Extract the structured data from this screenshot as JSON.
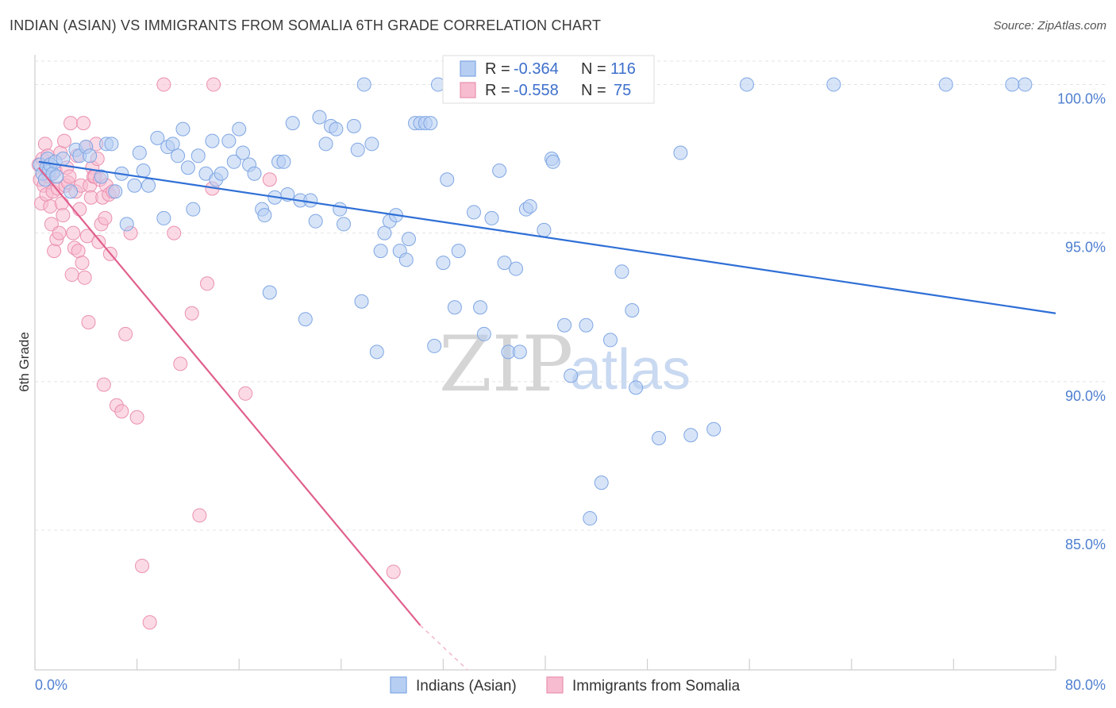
{
  "header": {
    "title": "INDIAN (ASIAN) VS IMMIGRANTS FROM SOMALIA 6TH GRADE CORRELATION CHART",
    "source": "Source: ZipAtlas.com"
  },
  "watermark": {
    "zip": "ZIP",
    "atlas": "atlas"
  },
  "colors": {
    "blue_fill": "#b7cef3",
    "blue_stroke": "#7fa6e3",
    "blue_line": "#2f6fd6",
    "pink_fill": "#f7bccf",
    "pink_stroke": "#ea90b0",
    "pink_line": "#e0608d",
    "grid": "#e3e3e3",
    "axis_text": "#4f7fd0"
  },
  "chart_data": {
    "type": "scatter",
    "title": "INDIAN (ASIAN) VS IMMIGRANTS FROM SOMALIA 6TH GRADE CORRELATION CHART",
    "xlabel": "",
    "ylabel": "6th Grade",
    "xlim": [
      0,
      80
    ],
    "ylim": [
      80.3,
      101.0
    ],
    "x_tick_labels": [
      "0.0%",
      "80.0%"
    ],
    "y_ticks": [
      85,
      90,
      95,
      100
    ],
    "y_tick_labels": [
      "85.0%",
      "90.0%",
      "95.0%",
      "100.0%"
    ],
    "legend": {
      "position": "top-center",
      "entries": [
        {
          "series": "Indians (Asian)",
          "r_label": "R =",
          "r": "-0.364",
          "n_label": "N =",
          "n": "116"
        },
        {
          "series": "Immigrants from Somalia",
          "r_label": "R =",
          "r": "-0.558",
          "n_label": "N =",
          "n": "75"
        }
      ]
    },
    "series": [
      {
        "name": "Indians (Asian)",
        "color": "#7fa6e3",
        "trendline": {
          "x": [
            0.3,
            80
          ],
          "y": [
            97.4,
            92.3
          ]
        },
        "points": [
          [
            0.4,
            97.3
          ],
          [
            0.6,
            97.0
          ],
          [
            0.8,
            96.8
          ],
          [
            0.9,
            97.2
          ],
          [
            1.0,
            97.5
          ],
          [
            1.1,
            97.1
          ],
          [
            1.2,
            97.3
          ],
          [
            1.4,
            97.0
          ],
          [
            1.6,
            97.4
          ],
          [
            1.7,
            96.9
          ],
          [
            2.2,
            97.5
          ],
          [
            2.8,
            96.4
          ],
          [
            3.2,
            97.8
          ],
          [
            3.5,
            97.6
          ],
          [
            4.0,
            97.9
          ],
          [
            4.3,
            97.6
          ],
          [
            5.2,
            96.9
          ],
          [
            5.6,
            98.0
          ],
          [
            6.0,
            98.0
          ],
          [
            6.3,
            96.4
          ],
          [
            6.8,
            97.0
          ],
          [
            7.2,
            95.3
          ],
          [
            7.8,
            96.6
          ],
          [
            8.2,
            97.7
          ],
          [
            8.5,
            97.1
          ],
          [
            8.9,
            96.6
          ],
          [
            9.6,
            98.2
          ],
          [
            10.1,
            95.5
          ],
          [
            10.4,
            97.9
          ],
          [
            10.8,
            98.0
          ],
          [
            11.2,
            97.6
          ],
          [
            11.6,
            98.5
          ],
          [
            12.0,
            97.2
          ],
          [
            12.4,
            95.8
          ],
          [
            12.8,
            97.6
          ],
          [
            13.4,
            97.0
          ],
          [
            13.9,
            98.1
          ],
          [
            14.2,
            96.8
          ],
          [
            14.6,
            97.0
          ],
          [
            15.2,
            98.1
          ],
          [
            15.6,
            97.4
          ],
          [
            16.0,
            98.5
          ],
          [
            16.3,
            97.7
          ],
          [
            16.8,
            97.3
          ],
          [
            17.2,
            97.0
          ],
          [
            17.8,
            95.8
          ],
          [
            18.0,
            95.6
          ],
          [
            18.4,
            93.0
          ],
          [
            18.8,
            96.2
          ],
          [
            19.1,
            97.4
          ],
          [
            19.5,
            97.4
          ],
          [
            19.8,
            96.3
          ],
          [
            20.2,
            98.7
          ],
          [
            20.8,
            96.1
          ],
          [
            21.2,
            92.1
          ],
          [
            21.6,
            96.1
          ],
          [
            22.0,
            95.4
          ],
          [
            22.3,
            98.9
          ],
          [
            22.8,
            98.0
          ],
          [
            23.2,
            98.6
          ],
          [
            23.6,
            98.5
          ],
          [
            23.9,
            95.8
          ],
          [
            24.2,
            95.3
          ],
          [
            25.0,
            98.6
          ],
          [
            25.3,
            97.8
          ],
          [
            25.6,
            92.7
          ],
          [
            25.8,
            100.0
          ],
          [
            26.4,
            98.0
          ],
          [
            26.8,
            91.0
          ],
          [
            27.1,
            94.4
          ],
          [
            27.4,
            95.0
          ],
          [
            27.8,
            95.4
          ],
          [
            28.3,
            95.6
          ],
          [
            28.6,
            94.4
          ],
          [
            29.1,
            94.1
          ],
          [
            29.3,
            94.8
          ],
          [
            29.8,
            98.7
          ],
          [
            30.2,
            98.7
          ],
          [
            30.6,
            98.7
          ],
          [
            31.0,
            98.7
          ],
          [
            31.3,
            91.2
          ],
          [
            31.6,
            100.0
          ],
          [
            32.0,
            94.0
          ],
          [
            32.3,
            96.8
          ],
          [
            32.9,
            92.5
          ],
          [
            33.2,
            94.4
          ],
          [
            34.4,
            95.7
          ],
          [
            34.9,
            92.5
          ],
          [
            35.2,
            91.6
          ],
          [
            35.8,
            95.5
          ],
          [
            36.4,
            97.1
          ],
          [
            36.8,
            94.0
          ],
          [
            37.1,
            91.0
          ],
          [
            37.7,
            93.8
          ],
          [
            38.0,
            91.0
          ],
          [
            38.5,
            95.8
          ],
          [
            38.8,
            95.9
          ],
          [
            39.9,
            95.1
          ],
          [
            40.5,
            97.5
          ],
          [
            40.6,
            97.4
          ],
          [
            41.5,
            91.9
          ],
          [
            42.0,
            90.2
          ],
          [
            43.2,
            91.9
          ],
          [
            43.5,
            85.4
          ],
          [
            44.4,
            86.6
          ],
          [
            45.1,
            91.4
          ],
          [
            46.0,
            93.7
          ],
          [
            46.8,
            92.4
          ],
          [
            47.1,
            89.8
          ],
          [
            48.9,
            88.1
          ],
          [
            50.6,
            97.7
          ],
          [
            51.4,
            88.2
          ],
          [
            53.2,
            88.4
          ],
          [
            55.8,
            100.0
          ],
          [
            62.6,
            100.0
          ],
          [
            71.4,
            100.0
          ],
          [
            76.6,
            100.0
          ],
          [
            77.6,
            100.0
          ]
        ]
      },
      {
        "name": "Immigrants from Somalia",
        "color": "#ea90b0",
        "trendline": {
          "x": [
            0.3,
            30.2
          ],
          "y": [
            97.2,
            81.8
          ],
          "dashed_extension_to": [
            33.9,
            79.9
          ]
        },
        "points": [
          [
            0.3,
            97.3
          ],
          [
            0.4,
            96.8
          ],
          [
            0.5,
            96.0
          ],
          [
            0.6,
            97.5
          ],
          [
            0.7,
            96.6
          ],
          [
            0.8,
            98.0
          ],
          [
            0.9,
            96.3
          ],
          [
            1.0,
            97.6
          ],
          [
            1.1,
            96.9
          ],
          [
            1.2,
            95.9
          ],
          [
            1.3,
            95.3
          ],
          [
            1.4,
            96.4
          ],
          [
            1.5,
            94.4
          ],
          [
            1.6,
            97.1
          ],
          [
            1.7,
            94.8
          ],
          [
            1.8,
            96.5
          ],
          [
            1.9,
            95.0
          ],
          [
            2.0,
            97.7
          ],
          [
            2.1,
            96.0
          ],
          [
            2.2,
            95.6
          ],
          [
            2.3,
            98.1
          ],
          [
            2.4,
            96.6
          ],
          [
            2.5,
            97.2
          ],
          [
            2.6,
            96.7
          ],
          [
            2.7,
            96.9
          ],
          [
            2.8,
            98.7
          ],
          [
            2.9,
            93.6
          ],
          [
            3.0,
            95.0
          ],
          [
            3.1,
            94.5
          ],
          [
            3.2,
            96.4
          ],
          [
            3.3,
            97.6
          ],
          [
            3.4,
            94.4
          ],
          [
            3.5,
            95.8
          ],
          [
            3.6,
            96.6
          ],
          [
            3.7,
            94.0
          ],
          [
            3.8,
            98.7
          ],
          [
            3.9,
            93.5
          ],
          [
            4.0,
            97.9
          ],
          [
            4.1,
            94.9
          ],
          [
            4.2,
            92.0
          ],
          [
            4.3,
            96.6
          ],
          [
            4.4,
            96.2
          ],
          [
            4.5,
            97.2
          ],
          [
            4.6,
            96.9
          ],
          [
            4.7,
            96.9
          ],
          [
            4.8,
            98.0
          ],
          [
            4.9,
            97.5
          ],
          [
            5.0,
            94.7
          ],
          [
            5.1,
            96.8
          ],
          [
            5.2,
            95.3
          ],
          [
            5.3,
            96.2
          ],
          [
            5.4,
            89.9
          ],
          [
            5.5,
            95.5
          ],
          [
            5.6,
            96.6
          ],
          [
            5.8,
            96.3
          ],
          [
            5.9,
            94.3
          ],
          [
            6.1,
            96.4
          ],
          [
            6.4,
            89.2
          ],
          [
            6.8,
            89.0
          ],
          [
            7.1,
            91.6
          ],
          [
            7.5,
            95.0
          ],
          [
            8.0,
            88.8
          ],
          [
            8.4,
            83.8
          ],
          [
            9.0,
            81.9
          ],
          [
            10.1,
            100.0
          ],
          [
            10.9,
            95.0
          ],
          [
            11.4,
            90.6
          ],
          [
            12.3,
            92.3
          ],
          [
            12.9,
            85.5
          ],
          [
            13.5,
            93.3
          ],
          [
            14.0,
            100.0
          ],
          [
            16.5,
            89.6
          ],
          [
            18.4,
            96.8
          ],
          [
            28.1,
            83.6
          ],
          [
            13.9,
            96.5
          ]
        ]
      }
    ]
  }
}
